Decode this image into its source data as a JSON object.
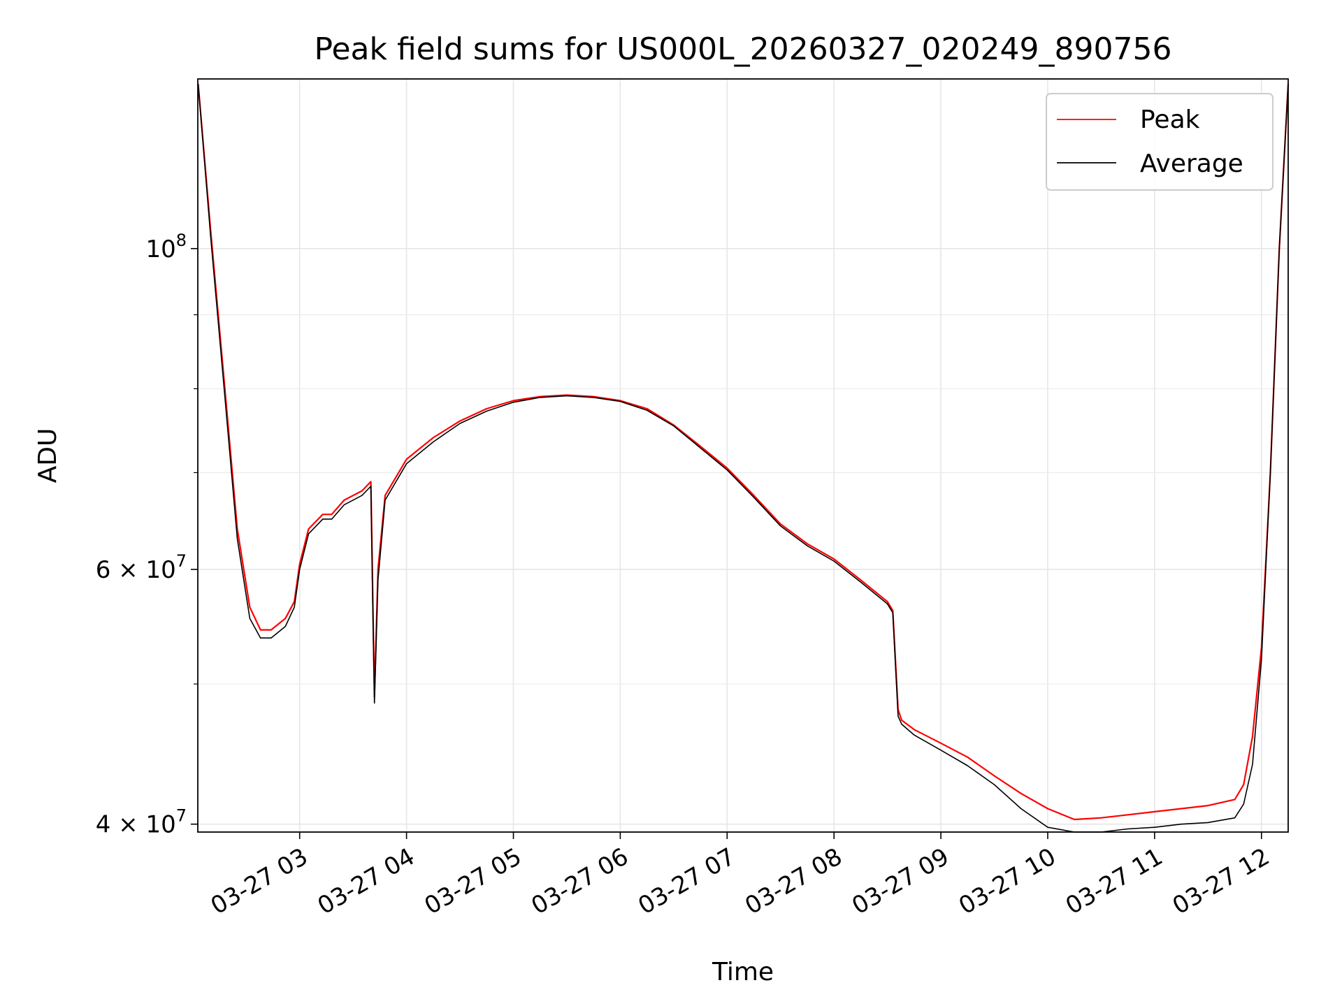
{
  "chart_data": {
    "type": "line",
    "title": "Peak field sums for US000L_20260327_020249_890756",
    "xlabel": "Time",
    "ylabel": "ADU",
    "x_type": "datetime",
    "xlim": [
      "2026-03-27 02:02:49",
      "2026-03-27 12:15:00"
    ],
    "ylim": [
      39500000,
      131000000
    ],
    "yscale": "log",
    "grid": true,
    "legend": "upper right",
    "x_ticks": [
      {
        "value": "2026-03-27 03:00",
        "label": "03-27 03"
      },
      {
        "value": "2026-03-27 04:00",
        "label": "03-27 04"
      },
      {
        "value": "2026-03-27 05:00",
        "label": "03-27 05"
      },
      {
        "value": "2026-03-27 06:00",
        "label": "03-27 06"
      },
      {
        "value": "2026-03-27 07:00",
        "label": "03-27 07"
      },
      {
        "value": "2026-03-27 08:00",
        "label": "03-27 08"
      },
      {
        "value": "2026-03-27 09:00",
        "label": "03-27 09"
      },
      {
        "value": "2026-03-27 10:00",
        "label": "03-27 10"
      },
      {
        "value": "2026-03-27 11:00",
        "label": "03-27 11"
      },
      {
        "value": "2026-03-27 12:00",
        "label": "03-27 12"
      }
    ],
    "y_major_ticks": [
      {
        "value": 40000000,
        "base": "4 × 10",
        "exp": "7"
      },
      {
        "value": 60000000,
        "base": "6 × 10",
        "exp": "7"
      },
      {
        "value": 100000000,
        "base": "10",
        "exp": "8"
      }
    ],
    "y_minor_ticks": [
      50000000,
      70000000,
      80000000,
      90000000
    ],
    "series": [
      {
        "name": "Peak",
        "color": "#ff0000",
        "x": [
          "2026-03-27 02:03",
          "2026-03-27 02:10",
          "2026-03-27 02:18",
          "2026-03-27 02:25",
          "2026-03-27 02:32",
          "2026-03-27 02:38",
          "2026-03-27 02:44",
          "2026-03-27 02:52",
          "2026-03-27 02:57",
          "2026-03-27 03:00",
          "2026-03-27 03:05",
          "2026-03-27 03:13",
          "2026-03-27 03:18",
          "2026-03-27 03:25",
          "2026-03-27 03:35",
          "2026-03-27 03:40",
          "2026-03-27 03:41",
          "2026-03-27 03:42",
          "2026-03-27 03:44",
          "2026-03-27 03:48",
          "2026-03-27 04:00",
          "2026-03-27 04:15",
          "2026-03-27 04:30",
          "2026-03-27 04:45",
          "2026-03-27 05:00",
          "2026-03-27 05:15",
          "2026-03-27 05:30",
          "2026-03-27 05:45",
          "2026-03-27 06:00",
          "2026-03-27 06:15",
          "2026-03-27 06:30",
          "2026-03-27 06:45",
          "2026-03-27 07:00",
          "2026-03-27 07:15",
          "2026-03-27 07:30",
          "2026-03-27 07:45",
          "2026-03-27 08:00",
          "2026-03-27 08:15",
          "2026-03-27 08:30",
          "2026-03-27 08:33",
          "2026-03-27 08:36",
          "2026-03-27 08:38",
          "2026-03-27 08:45",
          "2026-03-27 09:00",
          "2026-03-27 09:15",
          "2026-03-27 09:30",
          "2026-03-27 09:45",
          "2026-03-27 10:00",
          "2026-03-27 10:15",
          "2026-03-27 10:30",
          "2026-03-27 10:45",
          "2026-03-27 11:00",
          "2026-03-27 11:15",
          "2026-03-27 11:30",
          "2026-03-27 11:45",
          "2026-03-27 11:50",
          "2026-03-27 11:55",
          "2026-03-27 12:00",
          "2026-03-27 12:05",
          "2026-03-27 12:10",
          "2026-03-27 12:15"
        ],
        "values": [
          130000000,
          103000000,
          80000000,
          64000000,
          56500000,
          54500000,
          54500000,
          55500000,
          57000000,
          60500000,
          64000000,
          65500000,
          65500000,
          67000000,
          68000000,
          69000000,
          58000000,
          49000000,
          60000000,
          67500000,
          71500000,
          74000000,
          76000000,
          77500000,
          78500000,
          79000000,
          79200000,
          79000000,
          78500000,
          77500000,
          75500000,
          73000000,
          70500000,
          67500000,
          64500000,
          62500000,
          61000000,
          59000000,
          57000000,
          56200000,
          48000000,
          47200000,
          46500000,
          45500000,
          44500000,
          43200000,
          42000000,
          41000000,
          40300000,
          40400000,
          40600000,
          40800000,
          41000000,
          41200000,
          41600000,
          42600000,
          46000000,
          53000000,
          70000000,
          100000000,
          130000000
        ]
      },
      {
        "name": "Average",
        "color": "#000000",
        "x": [
          "2026-03-27 02:03",
          "2026-03-27 02:10",
          "2026-03-27 02:18",
          "2026-03-27 02:25",
          "2026-03-27 02:32",
          "2026-03-27 02:38",
          "2026-03-27 02:44",
          "2026-03-27 02:52",
          "2026-03-27 02:57",
          "2026-03-27 03:00",
          "2026-03-27 03:05",
          "2026-03-27 03:13",
          "2026-03-27 03:18",
          "2026-03-27 03:25",
          "2026-03-27 03:35",
          "2026-03-27 03:40",
          "2026-03-27 03:41",
          "2026-03-27 03:42",
          "2026-03-27 03:44",
          "2026-03-27 03:48",
          "2026-03-27 04:00",
          "2026-03-27 04:15",
          "2026-03-27 04:30",
          "2026-03-27 04:45",
          "2026-03-27 05:00",
          "2026-03-27 05:15",
          "2026-03-27 05:30",
          "2026-03-27 05:45",
          "2026-03-27 06:00",
          "2026-03-27 06:15",
          "2026-03-27 06:30",
          "2026-03-27 06:45",
          "2026-03-27 07:00",
          "2026-03-27 07:15",
          "2026-03-27 07:30",
          "2026-03-27 07:45",
          "2026-03-27 08:00",
          "2026-03-27 08:15",
          "2026-03-27 08:30",
          "2026-03-27 08:33",
          "2026-03-27 08:36",
          "2026-03-27 08:38",
          "2026-03-27 08:45",
          "2026-03-27 09:00",
          "2026-03-27 09:15",
          "2026-03-27 09:30",
          "2026-03-27 09:45",
          "2026-03-27 10:00",
          "2026-03-27 10:15",
          "2026-03-27 10:30",
          "2026-03-27 10:45",
          "2026-03-27 11:00",
          "2026-03-27 11:15",
          "2026-03-27 11:30",
          "2026-03-27 11:45",
          "2026-03-27 11:50",
          "2026-03-27 11:55",
          "2026-03-27 12:00",
          "2026-03-27 12:05",
          "2026-03-27 12:10",
          "2026-03-27 12:15"
        ],
        "values": [
          130000000,
          102000000,
          79000000,
          63000000,
          55500000,
          53800000,
          53800000,
          54800000,
          56500000,
          60000000,
          63500000,
          65000000,
          65000000,
          66500000,
          67500000,
          68500000,
          57000000,
          48500000,
          59000000,
          67000000,
          71000000,
          73500000,
          75700000,
          77200000,
          78300000,
          78900000,
          79100000,
          78900000,
          78400000,
          77300000,
          75400000,
          72800000,
          70300000,
          67300000,
          64300000,
          62300000,
          60800000,
          58800000,
          56800000,
          56000000,
          47500000,
          46900000,
          46100000,
          45000000,
          43900000,
          42600000,
          41000000,
          39800000,
          39500000,
          39500000,
          39700000,
          39800000,
          40000000,
          40100000,
          40400000,
          41300000,
          44000000,
          52000000,
          70000000,
          100000000,
          130000000
        ]
      }
    ]
  }
}
